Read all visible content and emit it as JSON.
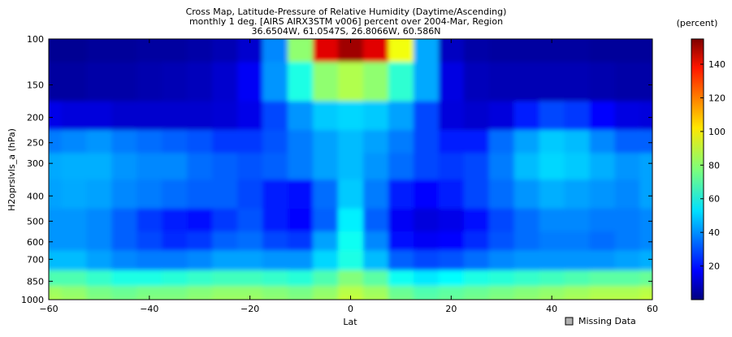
{
  "chart_data": {
    "type": "heatmap",
    "title_lines": [
      "Cross Map, Latitude-Pressure of Relative Humidity (Daytime/Ascending)",
      "monthly 1 deg. [AIRS AIRX3STM v006] percent over 2004-Mar, Region",
      "36.6504W, 61.0547S, 26.8066W, 60.586N"
    ],
    "xlabel": "Lat",
    "ylabel": "H2oprslvls_a (hPa)",
    "xlim": [
      -60,
      60
    ],
    "ylim": [
      1000,
      100
    ],
    "y_scale": "log",
    "x_ticks": [
      -60,
      -40,
      -20,
      0,
      20,
      40,
      60
    ],
    "x_tick_labels": [
      "−60",
      "−40",
      "−20",
      "0",
      "20",
      "40",
      "60"
    ],
    "y_ticks": [
      100,
      150,
      200,
      250,
      300,
      400,
      500,
      600,
      700,
      850,
      1000
    ],
    "y_tick_labels": [
      "100",
      "150",
      "200",
      "250",
      "300",
      "400",
      "500",
      "600",
      "700",
      "850",
      "1000"
    ],
    "pressure_levels": [
      100,
      150,
      200,
      250,
      300,
      400,
      500,
      600,
      700,
      850,
      925,
      1000
    ],
    "latitudes": [
      -60,
      -55,
      -50,
      -45,
      -40,
      -35,
      -30,
      -25,
      -20,
      -15,
      -10,
      -5,
      0,
      5,
      10,
      15,
      20,
      25,
      30,
      35,
      40,
      45,
      50,
      55,
      60
    ],
    "values": [
      [
        3,
        3,
        4,
        4,
        5,
        5,
        6,
        8,
        12,
        40,
        80,
        140,
        150,
        140,
        95,
        45,
        10,
        6,
        5,
        5,
        5,
        5,
        4,
        4,
        4
      ],
      [
        5,
        5,
        6,
        6,
        7,
        8,
        9,
        12,
        18,
        42,
        62,
        80,
        85,
        80,
        65,
        45,
        15,
        9,
        8,
        8,
        8,
        8,
        7,
        6,
        6
      ],
      [
        16,
        14,
        14,
        12,
        12,
        12,
        12,
        13,
        16,
        30,
        42,
        50,
        52,
        50,
        44,
        30,
        14,
        12,
        14,
        24,
        30,
        28,
        20,
        15,
        14
      ],
      [
        38,
        40,
        42,
        38,
        36,
        34,
        32,
        28,
        28,
        32,
        38,
        44,
        48,
        44,
        38,
        30,
        24,
        24,
        36,
        44,
        50,
        48,
        40,
        34,
        34
      ],
      [
        45,
        46,
        46,
        42,
        40,
        40,
        36,
        34,
        32,
        34,
        38,
        44,
        48,
        42,
        36,
        30,
        28,
        30,
        38,
        48,
        52,
        50,
        46,
        42,
        44
      ],
      [
        44,
        45,
        44,
        40,
        38,
        36,
        34,
        34,
        30,
        24,
        22,
        36,
        50,
        38,
        24,
        20,
        24,
        30,
        36,
        42,
        46,
        44,
        42,
        40,
        44
      ],
      [
        42,
        42,
        40,
        34,
        28,
        24,
        22,
        28,
        32,
        24,
        20,
        34,
        56,
        34,
        18,
        14,
        16,
        22,
        30,
        36,
        40,
        40,
        38,
        38,
        40
      ],
      [
        42,
        42,
        40,
        34,
        30,
        26,
        28,
        34,
        36,
        30,
        28,
        44,
        60,
        40,
        22,
        18,
        20,
        26,
        32,
        36,
        38,
        38,
        36,
        38,
        40
      ],
      [
        48,
        48,
        44,
        40,
        38,
        38,
        40,
        44,
        44,
        42,
        42,
        52,
        62,
        48,
        34,
        30,
        32,
        36,
        40,
        42,
        42,
        42,
        42,
        44,
        46
      ],
      [
        70,
        70,
        66,
        62,
        62,
        64,
        66,
        68,
        68,
        66,
        64,
        70,
        78,
        72,
        60,
        55,
        58,
        62,
        64,
        66,
        68,
        70,
        72,
        72,
        74
      ],
      [
        82,
        80,
        76,
        74,
        76,
        76,
        78,
        80,
        80,
        78,
        76,
        80,
        86,
        82,
        74,
        70,
        72,
        74,
        76,
        78,
        80,
        82,
        84,
        84,
        86
      ],
      [
        84,
        82,
        78,
        76,
        78,
        78,
        80,
        82,
        82,
        80,
        78,
        82,
        88,
        84,
        76,
        72,
        74,
        76,
        78,
        80,
        82,
        84,
        86,
        86,
        88
      ]
    ],
    "colormap": "jet",
    "colorbar": {
      "label": "(percent)",
      "range": [
        0,
        155
      ],
      "ticks": [
        20,
        40,
        60,
        80,
        100,
        120,
        140
      ]
    },
    "legend": {
      "label": "Missing Data",
      "swatch_color": "#b0b0b0",
      "placement": "bottom-right"
    }
  }
}
